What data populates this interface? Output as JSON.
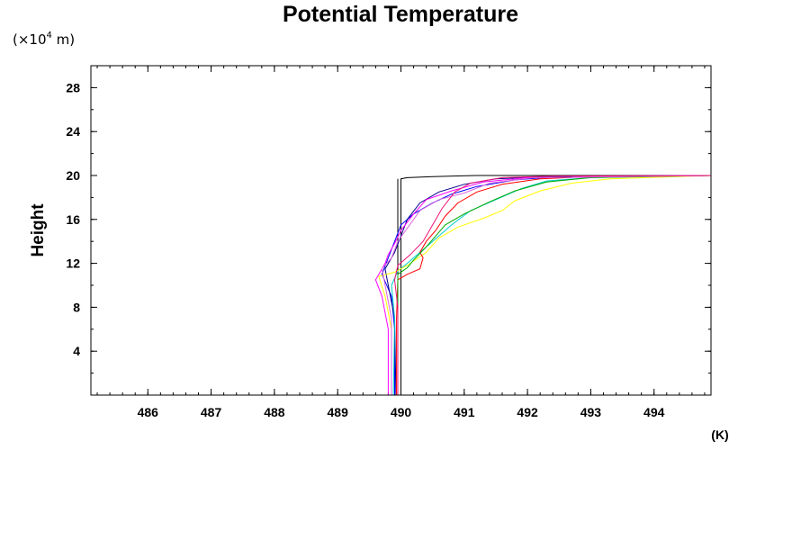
{
  "chart_data": {
    "type": "line",
    "title": "Potential Temperature",
    "xlabel": "(K)",
    "ylabel": "Height",
    "y_unit": {
      "prefix": "(×10",
      "exponent": "4",
      "suffix": " m)"
    },
    "xlim": [
      485.1,
      494.9
    ],
    "ylim": [
      0,
      30
    ],
    "x_ticks": [
      486,
      487,
      488,
      489,
      490,
      491,
      492,
      493,
      494
    ],
    "y_ticks": [
      4,
      8,
      12,
      16,
      20,
      24,
      28
    ],
    "grid": false,
    "legend": "none",
    "series": [
      {
        "color": "#000000",
        "points": [
          [
            490.0,
            0
          ],
          [
            490.0,
            19.7
          ],
          [
            490.1,
            19.8
          ],
          [
            490.5,
            19.9
          ],
          [
            491.2,
            20.0
          ],
          [
            492.5,
            20.0
          ],
          [
            494.9,
            20.0
          ]
        ]
      },
      {
        "color": "#000000",
        "points": [
          [
            489.95,
            0
          ],
          [
            489.95,
            19.7
          ]
        ]
      },
      {
        "color": "#0000ff",
        "points": [
          [
            489.9,
            0
          ],
          [
            489.9,
            6
          ],
          [
            489.85,
            9
          ],
          [
            489.7,
            11
          ],
          [
            489.8,
            12.5
          ],
          [
            489.9,
            14
          ],
          [
            490.0,
            15.5
          ],
          [
            490.2,
            16.5
          ],
          [
            490.5,
            17.5
          ],
          [
            490.8,
            18.3
          ],
          [
            491.2,
            19.0
          ],
          [
            491.8,
            19.6
          ],
          [
            492.5,
            19.9
          ],
          [
            494.9,
            20.0
          ]
        ]
      },
      {
        "color": "#00008b",
        "points": [
          [
            489.92,
            0
          ],
          [
            489.9,
            7
          ],
          [
            489.8,
            10
          ],
          [
            489.75,
            11.5
          ],
          [
            489.9,
            13
          ],
          [
            490.0,
            14.5
          ],
          [
            490.1,
            16
          ],
          [
            490.3,
            17.5
          ],
          [
            490.6,
            18.5
          ],
          [
            491.0,
            19.2
          ],
          [
            491.5,
            19.7
          ],
          [
            492.3,
            19.9
          ],
          [
            494.9,
            20.0
          ]
        ]
      },
      {
        "color": "#00cccc",
        "points": [
          [
            489.88,
            0
          ],
          [
            489.9,
            7
          ],
          [
            489.85,
            10
          ],
          [
            489.95,
            11.3
          ],
          [
            490.1,
            12
          ],
          [
            490.3,
            13
          ],
          [
            490.5,
            14
          ],
          [
            490.8,
            15.5
          ],
          [
            491.1,
            16.8
          ],
          [
            491.5,
            17.8
          ],
          [
            491.9,
            18.8
          ],
          [
            492.3,
            19.5
          ],
          [
            493.0,
            19.8
          ],
          [
            494.9,
            20.0
          ]
        ]
      },
      {
        "color": "#ffff00",
        "points": [
          [
            489.85,
            0
          ],
          [
            489.85,
            6
          ],
          [
            489.75,
            9
          ],
          [
            489.65,
            10.8
          ],
          [
            489.9,
            11.2
          ],
          [
            490.1,
            11.8
          ],
          [
            490.4,
            13
          ],
          [
            490.6,
            14.3
          ],
          [
            490.9,
            15.3
          ],
          [
            491.3,
            16.1
          ],
          [
            491.6,
            16.8
          ],
          [
            491.8,
            17.7
          ],
          [
            492.2,
            18.6
          ],
          [
            492.7,
            19.3
          ],
          [
            493.3,
            19.7
          ],
          [
            494.9,
            20.0
          ]
        ]
      },
      {
        "color": "#ff0000",
        "points": [
          [
            489.93,
            0
          ],
          [
            489.93,
            7
          ],
          [
            489.95,
            10.5
          ],
          [
            490.1,
            11.0
          ],
          [
            490.3,
            11.5
          ],
          [
            490.35,
            12.5
          ],
          [
            490.3,
            13
          ],
          [
            490.4,
            14
          ],
          [
            490.55,
            15
          ],
          [
            490.7,
            16.3
          ],
          [
            490.9,
            17.5
          ],
          [
            491.2,
            18.5
          ],
          [
            491.6,
            19.2
          ],
          [
            492.2,
            19.7
          ],
          [
            493.0,
            19.9
          ],
          [
            494.9,
            20.0
          ]
        ]
      },
      {
        "color": "#00aa00",
        "points": [
          [
            489.95,
            0
          ],
          [
            489.95,
            8
          ],
          [
            489.95,
            11
          ],
          [
            490.1,
            11.6
          ],
          [
            490.2,
            12.3
          ],
          [
            490.4,
            13.5
          ],
          [
            490.55,
            14.5
          ],
          [
            490.7,
            15.5
          ],
          [
            491.0,
            16.5
          ],
          [
            491.4,
            17.6
          ],
          [
            491.8,
            18.6
          ],
          [
            492.3,
            19.4
          ],
          [
            493.0,
            19.8
          ],
          [
            494.9,
            20.0
          ]
        ]
      },
      {
        "color": "#ff00ff",
        "points": [
          [
            489.8,
            0
          ],
          [
            489.8,
            6
          ],
          [
            489.7,
            9
          ],
          [
            489.6,
            10.5
          ],
          [
            489.75,
            12
          ],
          [
            489.8,
            12.8
          ],
          [
            489.9,
            13.8
          ],
          [
            490.0,
            15.0
          ],
          [
            490.2,
            16.5
          ],
          [
            490.4,
            17.8
          ],
          [
            490.8,
            18.6
          ],
          [
            491.3,
            19.4
          ],
          [
            492.0,
            19.8
          ],
          [
            494.9,
            20.0
          ]
        ]
      },
      {
        "color": "#dd66dd",
        "points": [
          [
            489.85,
            0
          ],
          [
            489.85,
            7
          ],
          [
            489.75,
            10
          ],
          [
            489.7,
            11.5
          ],
          [
            489.85,
            12.5
          ],
          [
            489.95,
            14
          ],
          [
            490.1,
            15.2
          ],
          [
            490.3,
            16.8
          ],
          [
            490.6,
            17.8
          ],
          [
            491.0,
            18.4
          ],
          [
            491.4,
            19.3
          ],
          [
            492.1,
            19.8
          ],
          [
            494.9,
            20.0
          ]
        ]
      },
      {
        "color": "#ee1177",
        "points": [
          [
            489.95,
            0
          ],
          [
            489.95,
            8
          ],
          [
            489.9,
            10.5
          ],
          [
            489.95,
            11.8
          ],
          [
            490.15,
            12.8
          ],
          [
            490.35,
            14
          ],
          [
            490.5,
            15.5
          ],
          [
            490.65,
            17
          ],
          [
            490.85,
            18.5
          ],
          [
            491.1,
            19.3
          ],
          [
            491.6,
            19.8
          ],
          [
            492.4,
            19.95
          ],
          [
            494.9,
            20.0
          ]
        ]
      }
    ]
  }
}
